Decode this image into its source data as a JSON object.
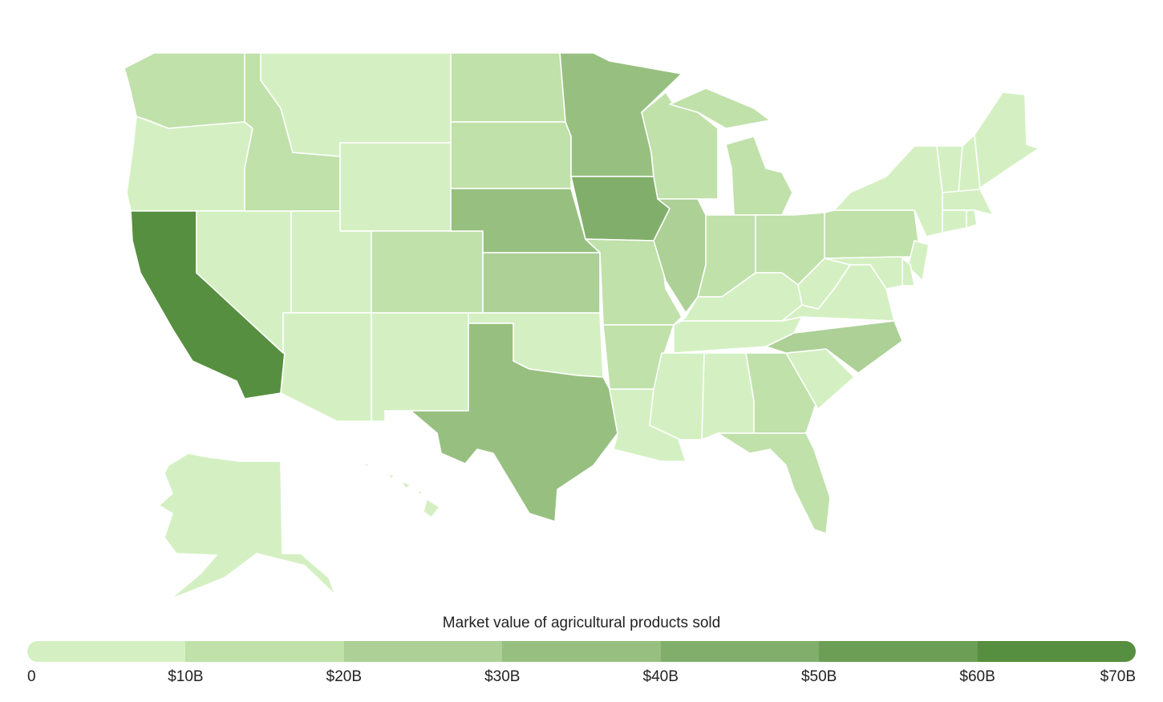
{
  "legend": {
    "title": "Market value of agricultural products sold",
    "ticks": [
      "0",
      "$10B",
      "$20B",
      "$30B",
      "$40B",
      "$50B",
      "$60B",
      "$70B"
    ],
    "colors": [
      "#d4f0c2",
      "#c0e1aa",
      "#acd096",
      "#97c080",
      "#81af6b",
      "#6c9e55",
      "#578f40"
    ]
  },
  "states": [
    {
      "id": "WA",
      "bin": 1
    },
    {
      "id": "OR",
      "bin": 0
    },
    {
      "id": "CA",
      "bin": 6
    },
    {
      "id": "NV",
      "bin": 0
    },
    {
      "id": "ID",
      "bin": 1
    },
    {
      "id": "MT",
      "bin": 0
    },
    {
      "id": "WY",
      "bin": 0
    },
    {
      "id": "UT",
      "bin": 0
    },
    {
      "id": "AZ",
      "bin": 0
    },
    {
      "id": "CO",
      "bin": 1
    },
    {
      "id": "NM",
      "bin": 0
    },
    {
      "id": "ND",
      "bin": 1
    },
    {
      "id": "SD",
      "bin": 1
    },
    {
      "id": "NE",
      "bin": 3
    },
    {
      "id": "KS",
      "bin": 2
    },
    {
      "id": "OK",
      "bin": 0
    },
    {
      "id": "TX",
      "bin": 3
    },
    {
      "id": "MN",
      "bin": 3
    },
    {
      "id": "IA",
      "bin": 4
    },
    {
      "id": "MO",
      "bin": 1
    },
    {
      "id": "AR",
      "bin": 1
    },
    {
      "id": "LA",
      "bin": 0
    },
    {
      "id": "WI",
      "bin": 1
    },
    {
      "id": "IL",
      "bin": 2
    },
    {
      "id": "MI",
      "bin": 1
    },
    {
      "id": "IN",
      "bin": 1
    },
    {
      "id": "OH",
      "bin": 1
    },
    {
      "id": "KY",
      "bin": 0
    },
    {
      "id": "TN",
      "bin": 0
    },
    {
      "id": "MS",
      "bin": 0
    },
    {
      "id": "AL",
      "bin": 0
    },
    {
      "id": "GA",
      "bin": 1
    },
    {
      "id": "FL",
      "bin": 1
    },
    {
      "id": "SC",
      "bin": 0
    },
    {
      "id": "NC",
      "bin": 2
    },
    {
      "id": "VA",
      "bin": 0
    },
    {
      "id": "WV",
      "bin": 0
    },
    {
      "id": "PA",
      "bin": 1
    },
    {
      "id": "NY",
      "bin": 0
    },
    {
      "id": "VT",
      "bin": 0
    },
    {
      "id": "NH",
      "bin": 0
    },
    {
      "id": "ME",
      "bin": 0
    },
    {
      "id": "MA",
      "bin": 0
    },
    {
      "id": "CT",
      "bin": 0
    },
    {
      "id": "RI",
      "bin": 0
    },
    {
      "id": "NJ",
      "bin": 0
    },
    {
      "id": "DE",
      "bin": 0
    },
    {
      "id": "MD",
      "bin": 0
    },
    {
      "id": "AK",
      "bin": 0
    },
    {
      "id": "HI",
      "bin": 0
    }
  ]
}
